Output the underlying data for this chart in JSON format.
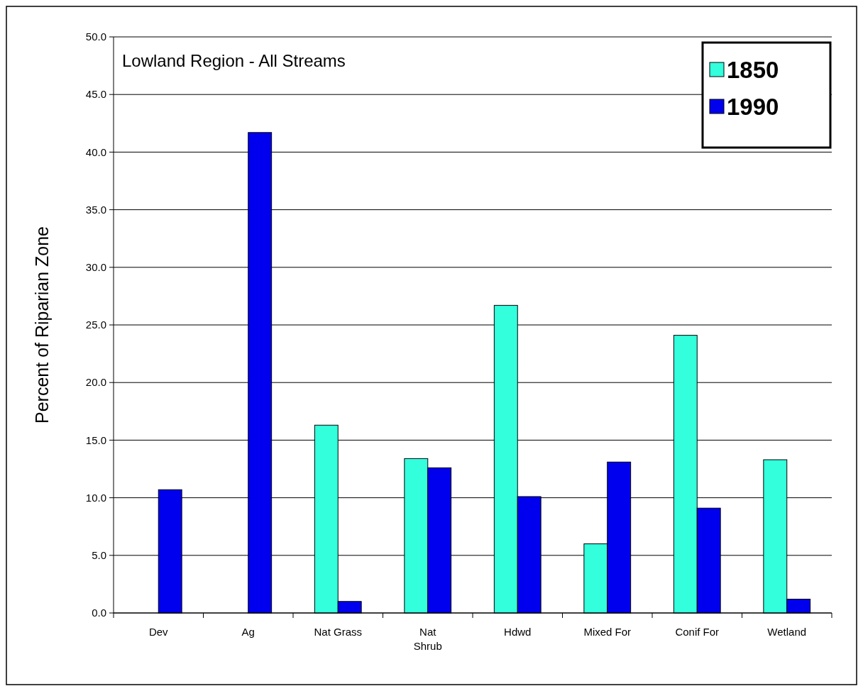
{
  "chart_data": {
    "type": "bar",
    "title": "Lowland Region -  All Streams",
    "ylabel": "Percent of Riparian Zone",
    "categories": [
      "Dev",
      "Ag",
      "Nat Grass",
      "Nat\nShrub",
      "Hdwd",
      "Mixed For",
      "Conif For",
      "Wetland"
    ],
    "series": [
      {
        "name": "1850",
        "color": "#33ffdd",
        "values": [
          0,
          0,
          16.3,
          13.4,
          26.7,
          6.0,
          24.1,
          13.3
        ]
      },
      {
        "name": "1990",
        "color": "#0000ee",
        "values": [
          10.7,
          41.7,
          1.0,
          12.6,
          10.1,
          13.1,
          9.1,
          1.2
        ]
      }
    ],
    "ylim": [
      0,
      50
    ],
    "yticks": [
      {
        "value": 0,
        "label": "0.0"
      },
      {
        "value": 5,
        "label": "5.0"
      },
      {
        "value": 10,
        "label": "10.0"
      },
      {
        "value": 15,
        "label": "15.0"
      },
      {
        "value": 20,
        "label": "20.0"
      },
      {
        "value": 25,
        "label": "25.0"
      },
      {
        "value": 30,
        "label": "30.0"
      },
      {
        "value": 35,
        "label": "35.0"
      },
      {
        "value": 40,
        "label": "40.0"
      },
      {
        "value": 45,
        "label": "45.0"
      },
      {
        "value": 50,
        "label": "50.0"
      }
    ],
    "grid": "y",
    "legend": "top right"
  }
}
